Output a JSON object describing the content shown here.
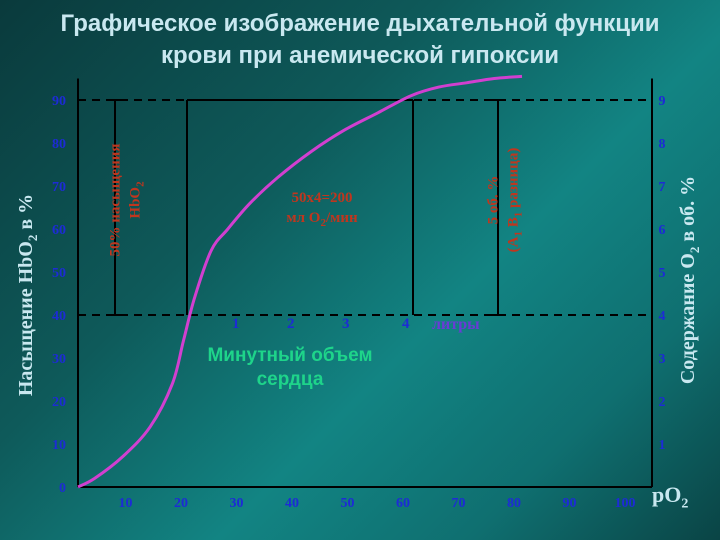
{
  "title_line1": "Графическое изображение дыхательной функции",
  "title_line2": "крови при анемической гипоксии",
  "chart_data": {
    "type": "line",
    "xlabel": "pO",
    "xlabel_sub": "2",
    "ylabel_left": "Насыщение HbO",
    "ylabel_left_sub": "2",
    "ylabel_left_suffix": " в %",
    "ylabel_right": "Содержание O",
    "ylabel_right_sub": "2",
    "ylabel_right_suffix": " в об. %",
    "x_ticks": [
      "10",
      "20",
      "30",
      "40",
      "50",
      "60",
      "70",
      "80",
      "90",
      "100"
    ],
    "y_ticks_left": [
      "0",
      "10",
      "20",
      "30",
      "40",
      "50",
      "60",
      "70",
      "80",
      "90"
    ],
    "y_ticks_right": [
      "1",
      "2",
      "3",
      "4",
      "5",
      "6",
      "7",
      "8",
      "9"
    ],
    "xlim": [
      0,
      105
    ],
    "ylim": [
      0,
      100
    ],
    "curve_color": "#d23fd0",
    "series": [
      {
        "x": [
          0,
          3,
          8,
          13,
          17,
          19,
          21,
          24,
          27,
          31,
          36,
          42,
          48,
          54,
          60,
          65,
          70,
          75,
          80
        ],
        "y": [
          0,
          2,
          7,
          14,
          24,
          34,
          44,
          55,
          60,
          66,
          72,
          78,
          83,
          87,
          91,
          93,
          94,
          95,
          95.5
        ]
      }
    ],
    "reference_lines": [
      {
        "y": 90
      },
      {
        "y": 40
      }
    ],
    "minute_volume_ticks": [
      "1",
      "2",
      "3",
      "4"
    ],
    "minute_volume_unit": "литры",
    "annotation_saturation_line1": "50% насыщения",
    "annotation_saturation_line2": "HbO",
    "annotation_saturation_sub": "2",
    "annotation_center_line1": "50х4=200",
    "annotation_center_line2": "мл O",
    "annotation_center_sub": "2",
    "annotation_center_suffix": "/мин",
    "annotation_av_line1": "5 об. %",
    "annotation_av_line2_a": "(A",
    "annotation_av_sub_a": "1",
    "annotation_av_line2_b": " B",
    "annotation_av_sub_b": "1",
    "annotation_av_line2_c": " разница)",
    "minute_label_line1": "Минутный объем",
    "minute_label_line2": "сердца"
  }
}
